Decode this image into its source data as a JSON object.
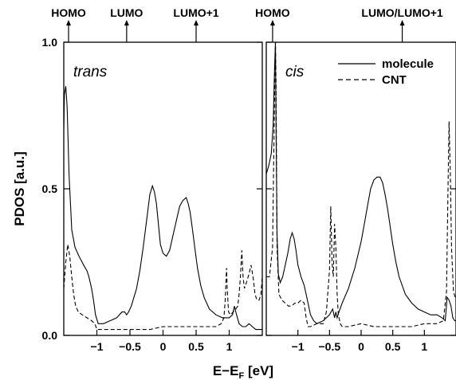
{
  "chart_data": [
    {
      "type": "line",
      "panel_label": "trans",
      "xlim": [
        -1.5,
        1.5
      ],
      "ylim": [
        0,
        1.0
      ],
      "x_ticks": [
        -1,
        -0.5,
        0,
        0.5,
        1
      ],
      "x_tick_labels": [
        "−1",
        "−0.5",
        "0",
        "0.5",
        "1"
      ],
      "y_ticks": [
        0,
        0.5,
        1.0
      ],
      "y_tick_labels": [
        "0.0",
        "0.5",
        "1.0"
      ],
      "top_markers": [
        {
          "label": "HOMO",
          "x": -1.5
        },
        {
          "label": "LUMO",
          "x": -0.55
        },
        {
          "label": "LUMO+1",
          "x": 0.5
        }
      ],
      "series": [
        {
          "name": "molecule",
          "style": "solid",
          "x": [
            -1.5,
            -1.49,
            -1.47,
            -1.45,
            -1.42,
            -1.38,
            -1.33,
            -1.27,
            -1.2,
            -1.15,
            -1.12,
            -1.08,
            -1.05,
            -1.02,
            -0.98,
            -0.9,
            -0.8,
            -0.7,
            -0.62,
            -0.58,
            -0.55,
            -0.52,
            -0.48,
            -0.44,
            -0.4,
            -0.35,
            -0.3,
            -0.25,
            -0.2,
            -0.16,
            -0.13,
            -0.1,
            -0.07,
            -0.04,
            0.0,
            0.05,
            0.1,
            0.15,
            0.2,
            0.25,
            0.3,
            0.35,
            0.38,
            0.41,
            0.44,
            0.48,
            0.52,
            0.57,
            0.62,
            0.7,
            0.8,
            0.9,
            0.95,
            1.0,
            1.05,
            1.08,
            1.1,
            1.15,
            1.2,
            1.25,
            1.3,
            1.35,
            1.4,
            1.45,
            1.5
          ],
          "y": [
            0.7,
            0.82,
            0.85,
            0.78,
            0.55,
            0.36,
            0.3,
            0.27,
            0.24,
            0.22,
            0.2,
            0.16,
            0.12,
            0.07,
            0.04,
            0.04,
            0.05,
            0.06,
            0.08,
            0.08,
            0.07,
            0.08,
            0.1,
            0.13,
            0.16,
            0.22,
            0.3,
            0.39,
            0.48,
            0.51,
            0.49,
            0.45,
            0.38,
            0.31,
            0.28,
            0.27,
            0.29,
            0.34,
            0.39,
            0.44,
            0.46,
            0.47,
            0.45,
            0.42,
            0.37,
            0.3,
            0.23,
            0.17,
            0.13,
            0.09,
            0.07,
            0.06,
            0.06,
            0.06,
            0.07,
            0.1,
            0.08,
            0.04,
            0.03,
            0.03,
            0.04,
            0.03,
            0.02,
            0.02,
            0.02
          ]
        },
        {
          "name": "CNT",
          "style": "dashed",
          "x": [
            -1.5,
            -1.47,
            -1.44,
            -1.41,
            -1.38,
            -1.35,
            -1.32,
            -1.28,
            -1.22,
            -1.15,
            -1.08,
            -1.03,
            -1.0,
            -0.9,
            -0.8,
            -0.6,
            -0.4,
            -0.2,
            0.0,
            0.2,
            0.4,
            0.6,
            0.8,
            0.88,
            0.92,
            0.94,
            0.96,
            0.97,
            0.99,
            1.02,
            1.06,
            1.1,
            1.13,
            1.15,
            1.17,
            1.19,
            1.21,
            1.23,
            1.26,
            1.3,
            1.33,
            1.36,
            1.39,
            1.42,
            1.45,
            1.48,
            1.5
          ],
          "y": [
            0.16,
            0.25,
            0.31,
            0.27,
            0.2,
            0.14,
            0.1,
            0.08,
            0.07,
            0.06,
            0.05,
            0.04,
            0.02,
            0.02,
            0.02,
            0.02,
            0.02,
            0.02,
            0.03,
            0.03,
            0.03,
            0.03,
            0.03,
            0.04,
            0.06,
            0.12,
            0.23,
            0.16,
            0.08,
            0.07,
            0.08,
            0.09,
            0.1,
            0.14,
            0.2,
            0.29,
            0.2,
            0.16,
            0.18,
            0.21,
            0.24,
            0.2,
            0.14,
            0.12,
            0.12,
            0.14,
            0.2
          ]
        }
      ]
    },
    {
      "type": "line",
      "panel_label": "cis",
      "xlim": [
        -1.5,
        1.5
      ],
      "ylim": [
        0,
        1.0
      ],
      "x_ticks": [
        -1,
        -0.5,
        0,
        0.5,
        1
      ],
      "x_tick_labels": [
        "−1",
        "−0.5",
        "0",
        "0.5",
        "1"
      ],
      "y_ticks": [
        0,
        0.5,
        1.0
      ],
      "top_markers": [
        {
          "label": "HOMO",
          "x": -1.4
        },
        {
          "label": "LUMO/LUMO+1",
          "x": 0.65
        }
      ],
      "legend_position": "top-right",
      "series": [
        {
          "name": "molecule",
          "style": "solid",
          "x": [
            -1.5,
            -1.46,
            -1.42,
            -1.39,
            -1.37,
            -1.355,
            -1.345,
            -1.33,
            -1.31,
            -1.28,
            -1.24,
            -1.2,
            -1.16,
            -1.12,
            -1.09,
            -1.06,
            -1.03,
            -1.0,
            -0.95,
            -0.9,
            -0.85,
            -0.8,
            -0.75,
            -0.7,
            -0.6,
            -0.5,
            -0.45,
            -0.42,
            -0.4,
            -0.38,
            -0.35,
            -0.3,
            -0.2,
            -0.1,
            0.0,
            0.05,
            0.1,
            0.15,
            0.2,
            0.25,
            0.3,
            0.34,
            0.38,
            0.42,
            0.46,
            0.5,
            0.55,
            0.6,
            0.7,
            0.8,
            0.9,
            1.0,
            1.1,
            1.2,
            1.28,
            1.33,
            1.36,
            1.39,
            1.42,
            1.45,
            1.48,
            1.5
          ],
          "y": [
            0.55,
            0.58,
            0.62,
            0.72,
            0.9,
            1.0,
            0.7,
            0.35,
            0.21,
            0.18,
            0.2,
            0.24,
            0.28,
            0.33,
            0.35,
            0.33,
            0.29,
            0.24,
            0.2,
            0.17,
            0.12,
            0.07,
            0.05,
            0.04,
            0.05,
            0.07,
            0.09,
            0.06,
            0.08,
            0.06,
            0.08,
            0.11,
            0.16,
            0.23,
            0.32,
            0.38,
            0.44,
            0.5,
            0.53,
            0.54,
            0.54,
            0.52,
            0.48,
            0.43,
            0.37,
            0.31,
            0.25,
            0.2,
            0.14,
            0.11,
            0.09,
            0.08,
            0.07,
            0.07,
            0.06,
            0.05,
            0.13,
            0.12,
            0.1,
            0.06,
            0.05,
            0.05
          ]
        },
        {
          "name": "CNT",
          "style": "dashed",
          "x": [
            -1.5,
            -1.45,
            -1.4,
            -1.37,
            -1.355,
            -1.345,
            -1.33,
            -1.3,
            -1.25,
            -1.2,
            -1.15,
            -1.1,
            -1.05,
            -1.0,
            -0.95,
            -0.9,
            -0.87,
            -0.84,
            -0.8,
            -0.7,
            -0.6,
            -0.55,
            -0.5,
            -0.48,
            -0.46,
            -0.44,
            -0.42,
            -0.4,
            -0.38,
            -0.36,
            -0.33,
            -0.3,
            -0.2,
            0.0,
            0.2,
            0.4,
            0.6,
            0.8,
            1.0,
            1.2,
            1.3,
            1.35,
            1.37,
            1.39,
            1.41,
            1.43,
            1.46,
            1.5
          ],
          "y": [
            0.2,
            0.2,
            0.3,
            0.8,
            1.0,
            0.85,
            0.3,
            0.14,
            0.12,
            0.11,
            0.1,
            0.1,
            0.11,
            0.11,
            0.12,
            0.11,
            0.06,
            0.03,
            0.03,
            0.04,
            0.04,
            0.08,
            0.22,
            0.44,
            0.25,
            0.2,
            0.38,
            0.3,
            0.14,
            0.07,
            0.04,
            0.03,
            0.03,
            0.04,
            0.03,
            0.03,
            0.03,
            0.03,
            0.04,
            0.04,
            0.05,
            0.15,
            0.45,
            0.73,
            0.55,
            0.3,
            0.15,
            0.12
          ]
        }
      ]
    }
  ],
  "figure": {
    "ylabel": "PDOS [a.u.]",
    "xlabel_main": "E−E",
    "xlabel_sub": "F",
    "xlabel_unit": " [eV]",
    "legend": [
      {
        "label": "molecule",
        "style": "solid"
      },
      {
        "label": "CNT",
        "style": "dashed"
      }
    ]
  }
}
